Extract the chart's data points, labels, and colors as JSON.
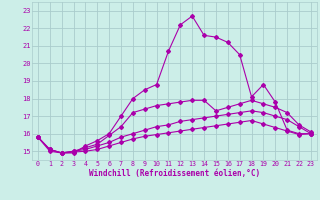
{
  "xlabel": "Windchill (Refroidissement éolien,°C)",
  "xlim": [
    -0.5,
    23.5
  ],
  "ylim": [
    14.5,
    23.5
  ],
  "yticks": [
    15,
    16,
    17,
    18,
    19,
    20,
    21,
    22,
    23
  ],
  "xticks": [
    0,
    1,
    2,
    3,
    4,
    5,
    6,
    7,
    8,
    9,
    10,
    11,
    12,
    13,
    14,
    15,
    16,
    17,
    18,
    19,
    20,
    21,
    22,
    23
  ],
  "bg_color": "#cceee8",
  "line_color": "#aa00aa",
  "grid_color": "#aacccc",
  "series1": [
    15.8,
    15.1,
    14.9,
    14.9,
    15.3,
    15.6,
    16.0,
    17.0,
    18.0,
    18.5,
    18.8,
    20.7,
    22.2,
    22.7,
    21.6,
    21.5,
    21.2,
    20.5,
    18.1,
    18.8,
    17.8,
    16.2,
    16.0,
    16.0
  ],
  "series2": [
    15.8,
    15.1,
    14.9,
    15.0,
    15.2,
    15.4,
    15.9,
    16.4,
    17.2,
    17.4,
    17.6,
    17.7,
    17.8,
    17.9,
    17.9,
    17.3,
    17.5,
    17.7,
    17.9,
    17.7,
    17.5,
    17.2,
    16.5,
    16.1
  ],
  "series3": [
    15.8,
    15.1,
    14.9,
    15.0,
    15.1,
    15.3,
    15.5,
    15.8,
    16.0,
    16.2,
    16.4,
    16.5,
    16.7,
    16.8,
    16.9,
    17.0,
    17.1,
    17.2,
    17.3,
    17.2,
    17.0,
    16.8,
    16.4,
    16.0
  ],
  "series4": [
    15.8,
    15.0,
    14.9,
    14.95,
    15.0,
    15.1,
    15.3,
    15.5,
    15.7,
    15.85,
    15.95,
    16.05,
    16.15,
    16.25,
    16.35,
    16.45,
    16.55,
    16.65,
    16.75,
    16.55,
    16.35,
    16.15,
    15.95,
    16.0
  ]
}
